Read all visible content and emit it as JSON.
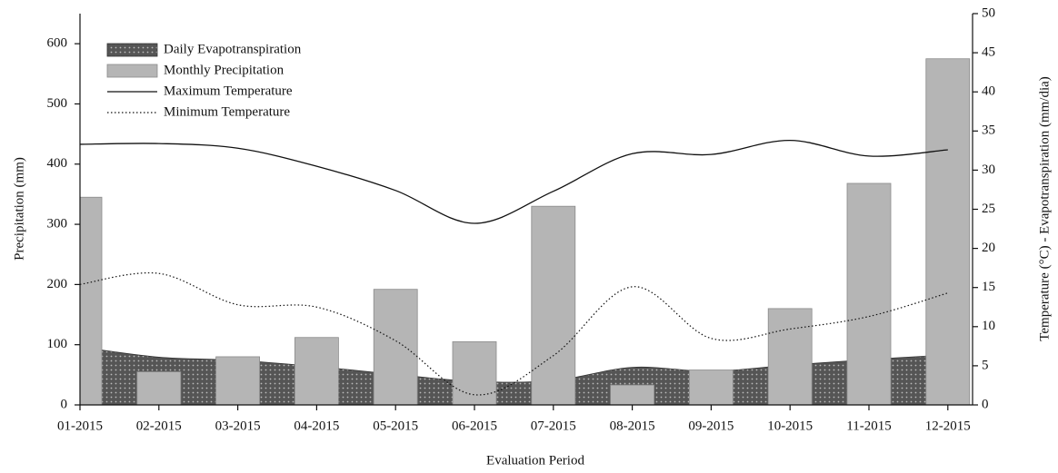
{
  "chart_data": {
    "type": "combo",
    "x_label": "Evaluation Period",
    "y_label": "Precipitation (mm)",
    "y2_label": "Temperature (°C) - Evapotranspiration (mm/dia)",
    "categories": [
      "01-2015",
      "02-2015",
      "03-2015",
      "04-2015",
      "05-2015",
      "06-2015",
      "07-2015",
      "08-2015",
      "09-2015",
      "10-2015",
      "11-2015",
      "12-2015"
    ],
    "series": [
      {
        "name": "Daily Evapotranspiration",
        "type": "area",
        "axis": "y2",
        "color": "#555555",
        "values": [
          7.4,
          6.1,
          5.7,
          4.9,
          3.9,
          3.0,
          3.1,
          4.8,
          4.3,
          5.1,
          5.8,
          6.4
        ]
      },
      {
        "name": "Monthly Precipitation",
        "type": "bar",
        "axis": "y",
        "color": "#b5b5b5",
        "values": [
          345,
          55,
          80,
          112,
          192,
          105,
          330,
          33,
          58,
          160,
          368,
          575
        ]
      },
      {
        "name": "Maximum Temperature",
        "type": "line",
        "axis": "y2",
        "color": "#111111",
        "dash": "solid",
        "values": [
          33.3,
          33.4,
          32.8,
          30.5,
          27.4,
          23.2,
          27.3,
          32.1,
          32.0,
          33.8,
          31.8,
          32.6
        ]
      },
      {
        "name": "Minimum Temperature",
        "type": "line",
        "axis": "y2",
        "color": "#111111",
        "dash": "dotted",
        "values": [
          15.4,
          16.8,
          12.8,
          12.5,
          8.2,
          1.3,
          6.3,
          15.1,
          8.5,
          9.7,
          11.3,
          14.3
        ]
      }
    ],
    "ylim": [
      0,
      650
    ],
    "yticks": [
      0,
      100,
      200,
      300,
      400,
      500,
      600
    ],
    "y2lim": [
      0,
      50
    ],
    "y2ticks": [
      0,
      5,
      10,
      15,
      20,
      25,
      30,
      35,
      40,
      45,
      50
    ],
    "legend": "top-left"
  }
}
